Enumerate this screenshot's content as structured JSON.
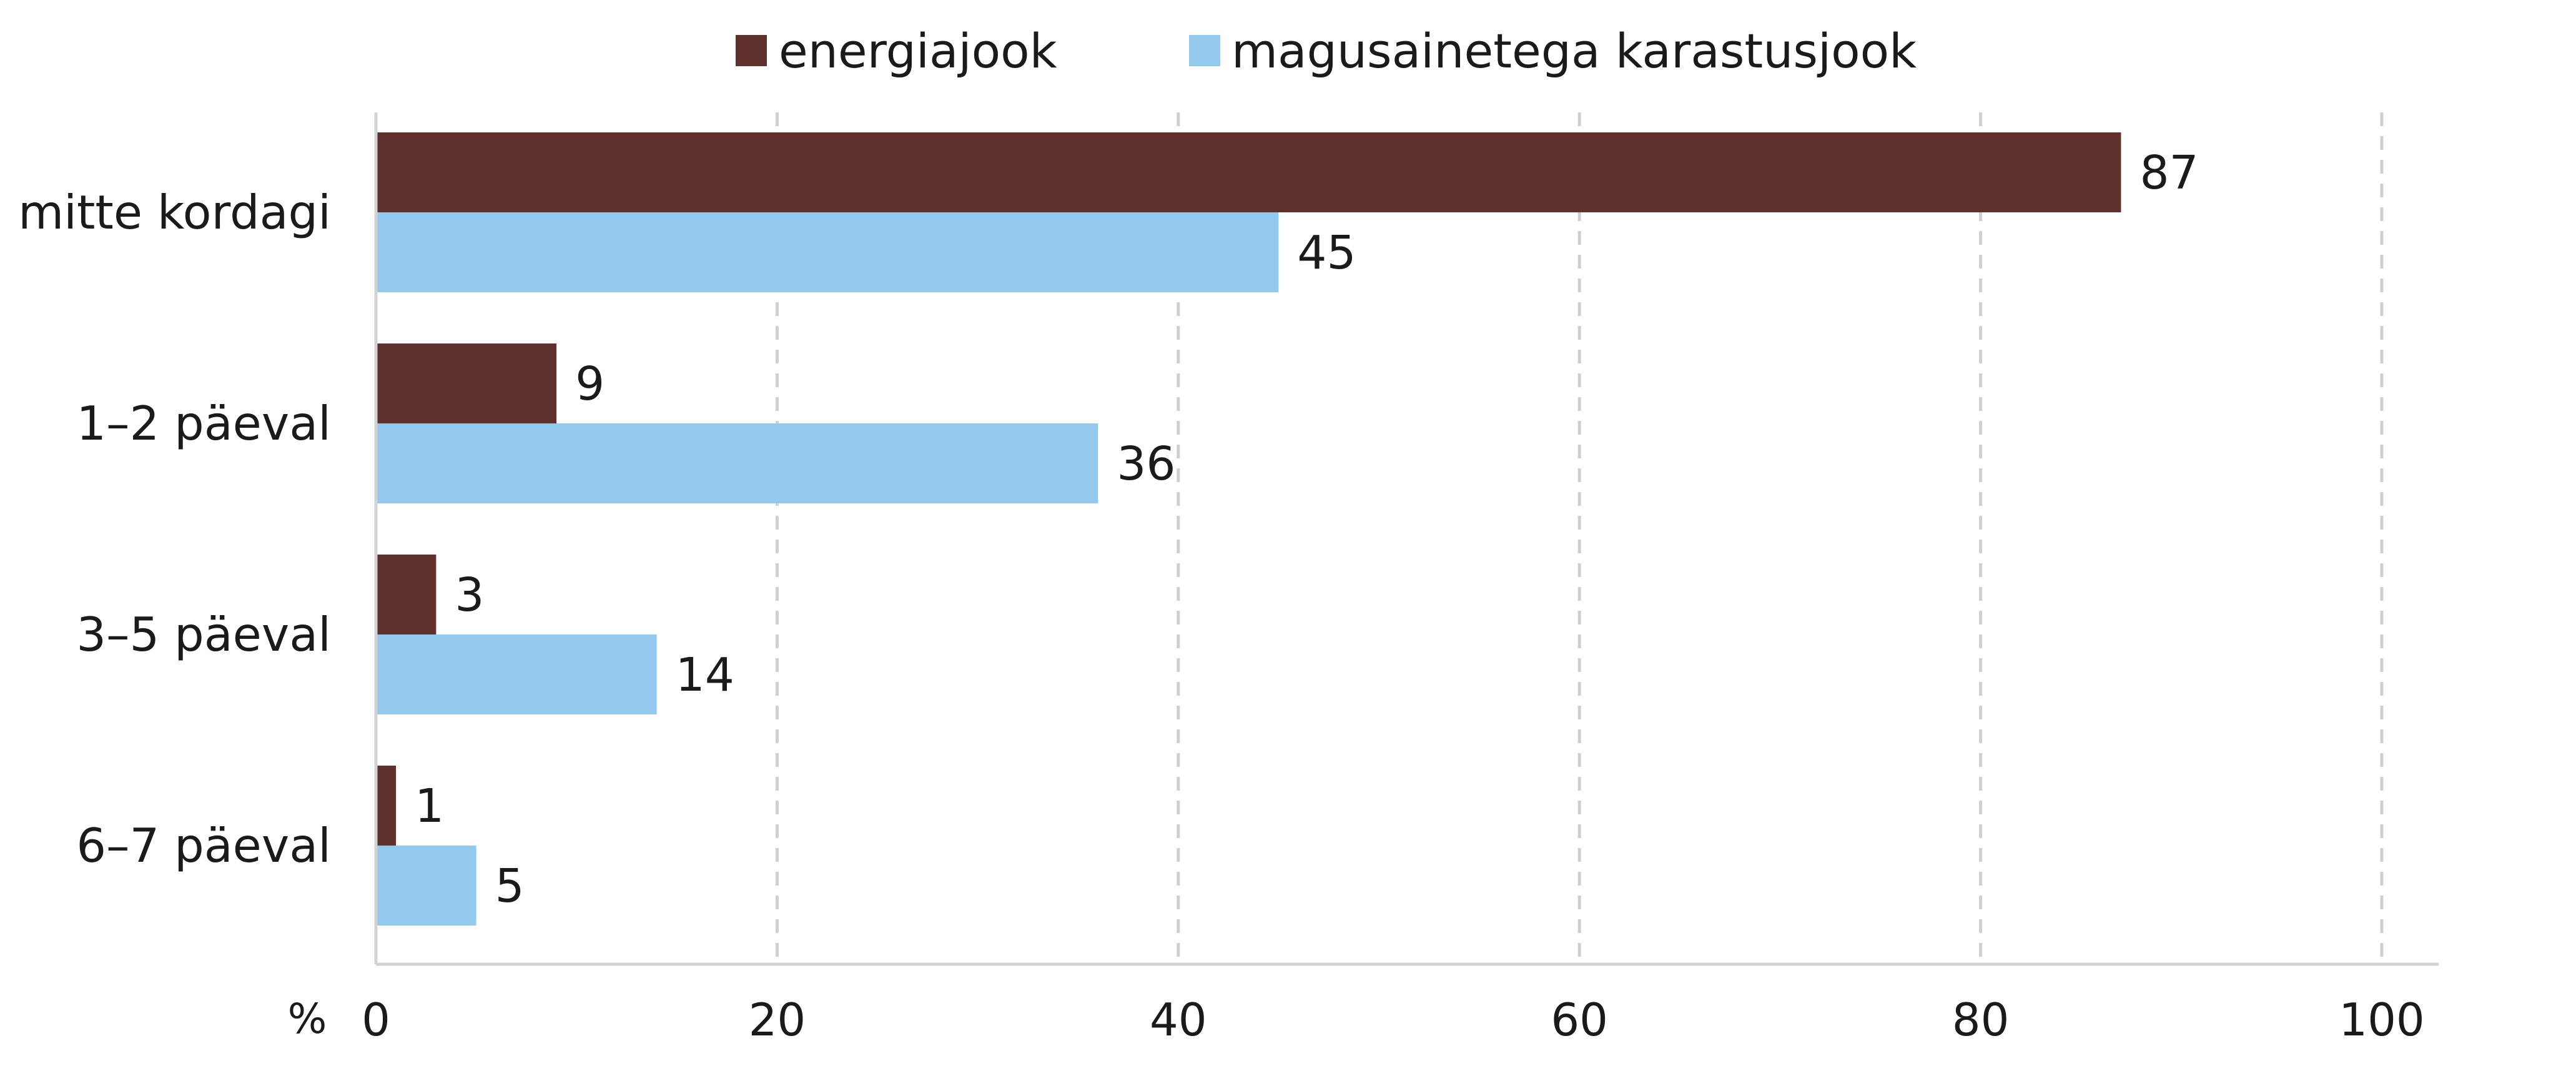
{
  "chart_data": {
    "type": "bar",
    "orientation": "horizontal",
    "categories": [
      "mitte kordagi",
      "1–2 päeval",
      "3–5 päeval",
      "6–7 päeval"
    ],
    "series": [
      {
        "name": "energiajook",
        "color": "#5e312d",
        "values": [
          87,
          9,
          3,
          1
        ]
      },
      {
        "name": "magusainetega karastusjook",
        "color": "#93c9ec",
        "values": [
          45,
          36,
          14,
          5
        ]
      }
    ],
    "xlim": [
      0,
      100
    ],
    "xticks": [
      "0",
      "20",
      "40",
      "60",
      "80",
      "100"
    ],
    "x_unit": "%",
    "grid": true,
    "legend_position": "top"
  }
}
